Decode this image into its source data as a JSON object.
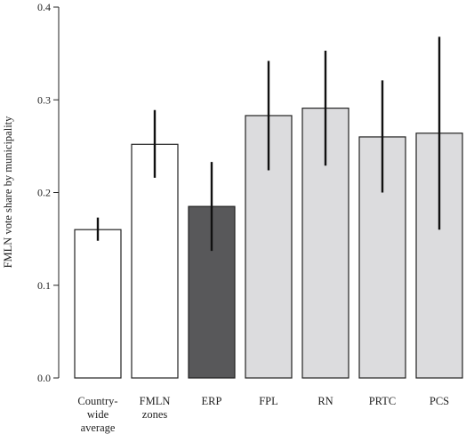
{
  "chart_data": {
    "type": "bar",
    "ylabel": "FMLN vote share by municipality",
    "xlabel": "",
    "ylim": [
      0,
      0.4
    ],
    "yticks": [
      "0.0",
      "0.1",
      "0.2",
      "0.3",
      "0.4"
    ],
    "ytick_values": [
      0,
      0.1,
      0.2,
      0.3,
      0.4
    ],
    "grid": false,
    "categories": [
      [
        "Country-",
        "wide",
        "average"
      ],
      [
        "FMLN",
        "zones"
      ],
      [
        "ERP"
      ],
      [
        "FPL"
      ],
      [
        "RN"
      ],
      [
        "PRTC"
      ],
      [
        "PCS"
      ]
    ],
    "values": [
      0.16,
      0.252,
      0.185,
      0.283,
      0.291,
      0.26,
      0.264
    ],
    "error_low": [
      0.148,
      0.216,
      0.137,
      0.224,
      0.229,
      0.2,
      0.16
    ],
    "error_high": [
      0.173,
      0.289,
      0.233,
      0.342,
      0.353,
      0.321,
      0.368
    ],
    "bar_colors": [
      "#ffffff",
      "#ffffff",
      "#58585a",
      "#dcdcde",
      "#dcdcde",
      "#dcdcde",
      "#dcdcde"
    ],
    "bar_stroke": "#222222",
    "error_color": "#111111"
  }
}
